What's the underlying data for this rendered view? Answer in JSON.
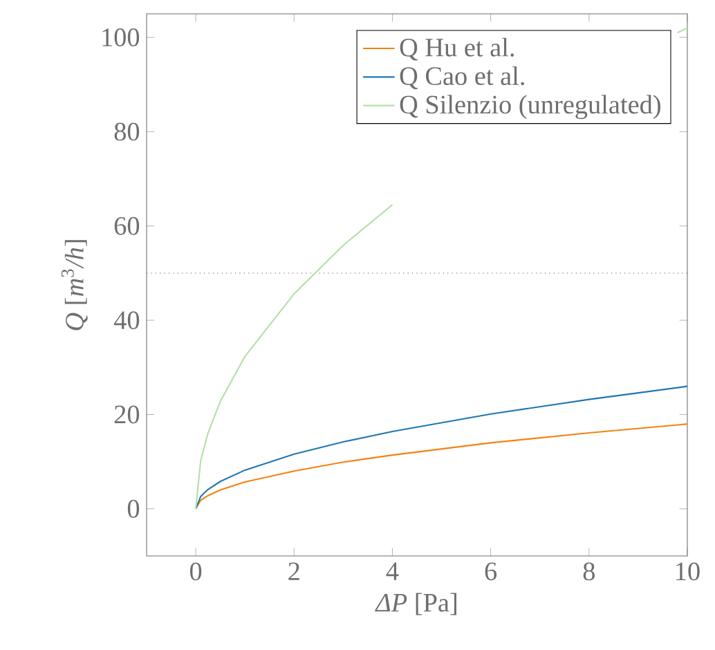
{
  "chart_data": {
    "type": "line",
    "xlabel": "*ΔP* [Pa]",
    "ylabel": "*Q* [*m*$^{3}$*/h*]",
    "x": [
      0,
      0.1,
      0.25,
      0.5,
      1,
      2,
      3,
      4,
      6,
      8,
      9.8,
      10
    ],
    "series": [
      {
        "name": "Q Hu et al.",
        "color": "#f5820f",
        "values": [
          0,
          1.8,
          2.8,
          4.0,
          5.7,
          8.0,
          9.9,
          11.4,
          14.0,
          16.1,
          17.8,
          18.0
        ]
      },
      {
        "name": "Q Cao et al.",
        "color": "#1f77b4",
        "values": [
          0,
          2.6,
          4.1,
          5.8,
          8.2,
          11.6,
          14.2,
          16.4,
          20.1,
          23.2,
          25.7,
          26.0
        ]
      },
      {
        "name": "Q Silenzio (unregulated)",
        "color": "#b5dfa8",
        "values": [
          0,
          10.2,
          16.1,
          22.8,
          32.3,
          45.6,
          55.9,
          64.5,
          null,
          null,
          101,
          102
        ]
      }
    ],
    "xlim": [
      -1,
      10
    ],
    "ylim": [
      -10,
      105
    ],
    "xticks": [
      0,
      2,
      4,
      6,
      8,
      10
    ],
    "yticks": [
      0,
      20,
      40,
      60,
      80,
      100
    ],
    "ref_lines": [
      {
        "axis": "y",
        "value": 50,
        "color": "#444444",
        "line_style": "dotted"
      }
    ],
    "legend": "top right",
    "grid": false,
    "marker": "none",
    "line_style": "solid"
  }
}
